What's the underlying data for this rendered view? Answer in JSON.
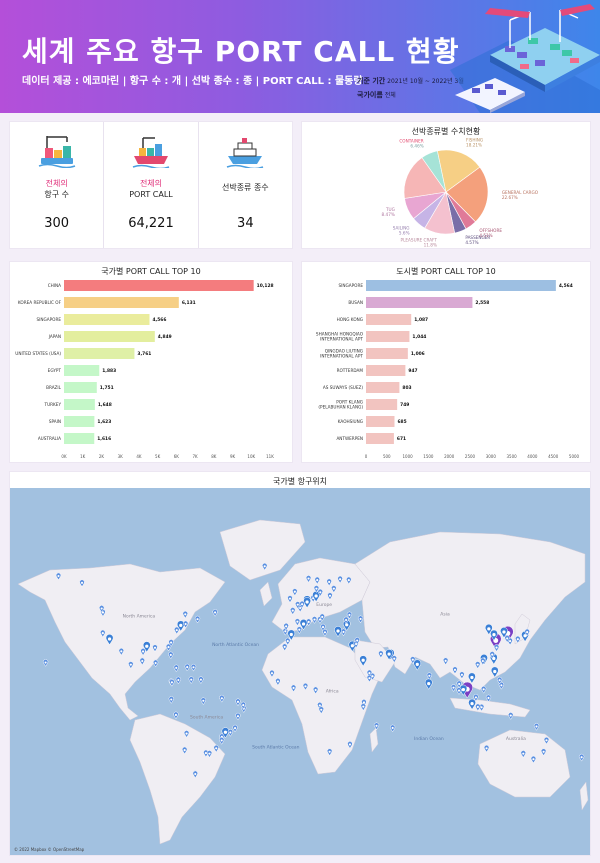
{
  "header": {
    "title": "세계 주요 항구 PORT CALL 현황",
    "subtitle": "데이터 제공 : 에코마린 | 항구 수 : 개 | 선박 종수 : 종 | PORT CALL : 물동량",
    "period_label": "기준 기간",
    "period_value": "2021년 10월 ~ 2022년 3월",
    "country_label": "국가이름",
    "country_value": "전체"
  },
  "kpis": [
    {
      "label_hl": "전체의",
      "label": "항구 수",
      "value": "300",
      "icon": "port-crane-icon"
    },
    {
      "label_hl": "전체의",
      "label": "PORT CALL",
      "value": "64,221",
      "icon": "cargo-ship-icon"
    },
    {
      "label_hl": "",
      "label": "선박종류 종수",
      "value": "34",
      "icon": "cruise-ship-icon"
    }
  ],
  "pie": {
    "title": "선박종류별 수치현황",
    "chart_data": {
      "type": "pie",
      "title": "선박종류별 수치현황",
      "slices": [
        {
          "name": "CONTAINER",
          "pct": "6.46%",
          "value": 6.46,
          "color": "#a6e3d7"
        },
        {
          "name": "FISHING",
          "pct": "18.21%",
          "value": 18.21,
          "color": "#f6cf85"
        },
        {
          "name": "GENERAL CARGO",
          "pct": "22.67%",
          "value": 22.67,
          "color": "#f4a07c"
        },
        {
          "name": "OFFSHORE",
          "pct": "4.51%",
          "value": 4.51,
          "color": "#e07a98"
        },
        {
          "name": "PASSENGER",
          "pct": "4.57%",
          "value": 4.57,
          "color": "#7a6ea8"
        },
        {
          "name": "PLEASURE CRAFT",
          "pct": "11.8%",
          "value": 11.8,
          "color": "#f4c1cf"
        },
        {
          "name": "SAILING",
          "pct": "5.6%",
          "value": 5.6,
          "color": "#c6b4e6"
        },
        {
          "name": "TUG",
          "pct": "8.47%",
          "value": 8.47,
          "color": "#e8a6d2"
        },
        {
          "name": "",
          "pct": "",
          "value": 17.71,
          "color": "#f6b6b6"
        }
      ]
    }
  },
  "country_chart": {
    "title": "국가별 PORT CALL TOP 10",
    "chart_data": {
      "type": "bar",
      "categories": [
        "CHINA",
        "KOREA REPUBLIC OF",
        "SINGAPORE",
        "JAPAN",
        "UNITED STATES (USA)",
        "EGYPT",
        "BRAZIL",
        "TURKEY",
        "SPAIN",
        "AUSTRALIA"
      ],
      "values": [
        10128,
        6131,
        4566,
        4849,
        3761,
        1883,
        1751,
        1648,
        1623,
        1616
      ],
      "value_labels": [
        "10,128",
        "6,131",
        "4,566",
        "4,849",
        "3,761",
        "1,883",
        "1,751",
        "1,648",
        "1,623",
        "1,616"
      ],
      "colors": [
        "#f47c7e",
        "#f6cf85",
        "#eaec9c",
        "#e3ee9e",
        "#dff0a6",
        "#c4f7c8",
        "#c4f7c8",
        "#c4f7c8",
        "#c4f7c8",
        "#c4f7c8"
      ],
      "xticks": [
        "0K",
        "1K",
        "2K",
        "3K",
        "4K",
        "5K",
        "6K",
        "7K",
        "8K",
        "9K",
        "10K",
        "11K"
      ],
      "xlim": [
        0,
        11000
      ]
    }
  },
  "city_chart": {
    "title": "도시별 PORT CALL TOP 10",
    "chart_data": {
      "type": "bar",
      "categories": [
        "SINGAPORE",
        "BUSAN",
        "HONG KONG",
        "SHANGHAI HONGQIAO INTERNATIONAL APT",
        "QINGDAO LIUTING INTERNATIONAL APT",
        "ROTTERDAM",
        "AS SUWAYS (SUEZ)",
        "PORT KLANG (PELABUHAN KLANG)",
        "KAOHSIUNG",
        "ANTWERPEN"
      ],
      "values": [
        4564,
        2558,
        1087,
        1044,
        1006,
        947,
        803,
        749,
        685,
        671
      ],
      "value_labels": [
        "4,564",
        "2,558",
        "1,087",
        "1,044",
        "1,006",
        "947",
        "803",
        "749",
        "685",
        "671"
      ],
      "colors": [
        "#9dbfe2",
        "#d9a9d3",
        "#f2c4c0",
        "#f2c4c0",
        "#f2c4c0",
        "#f2c4c0",
        "#f2c4c0",
        "#f2c4c0",
        "#f2c4c0",
        "#f2c4c0"
      ],
      "xticks": [
        "0",
        "500",
        "1000",
        "1500",
        "2000",
        "2500",
        "3000",
        "3500",
        "4000",
        "4500",
        "5000"
      ],
      "xlim": [
        0,
        5000
      ]
    }
  },
  "map": {
    "title": "국가별 항구위치",
    "labels": [
      {
        "text": "North America",
        "lon": -100,
        "lat": 47
      },
      {
        "text": "North Atlantic Ocean",
        "lon": -40,
        "lat": 33
      },
      {
        "text": "Europe",
        "lon": 15,
        "lat": 52
      },
      {
        "text": "Asia",
        "lon": 90,
        "lat": 48
      },
      {
        "text": "Africa",
        "lon": 20,
        "lat": 5
      },
      {
        "text": "South America",
        "lon": -58,
        "lat": -12
      },
      {
        "text": "South Atlantic Ocean",
        "lon": -15,
        "lat": -30
      },
      {
        "text": "Indian Ocean",
        "lon": 80,
        "lat": -25
      },
      {
        "text": "Australia",
        "lon": 134,
        "lat": -25
      }
    ],
    "attribution": "© 2022 Mapbox © OpenStreetMap",
    "ports": [
      [
        103.8,
        1.3,
        3
      ],
      [
        129,
        35.1,
        3
      ],
      [
        114.2,
        22.3,
        2
      ],
      [
        121.5,
        31.2,
        3
      ],
      [
        120.4,
        36,
        2
      ],
      [
        4.4,
        51.9,
        2
      ],
      [
        32.5,
        30,
        2
      ],
      [
        101.4,
        3,
        2
      ],
      [
        120.3,
        22.6,
        2
      ],
      [
        4.4,
        51.2,
        2
      ],
      [
        139.7,
        35.4,
        2
      ],
      [
        135.2,
        34.6,
        1
      ],
      [
        130.4,
        33.6,
        1
      ],
      [
        141,
        38.3,
        1
      ],
      [
        126.6,
        37.4,
        2
      ],
      [
        128.6,
        35,
        1
      ],
      [
        117.2,
        39,
        2
      ],
      [
        122,
        30,
        1
      ],
      [
        119.3,
        26,
        1
      ],
      [
        113.5,
        22.2,
        1
      ],
      [
        110.3,
        20,
        1
      ],
      [
        106.7,
        10.8,
        2
      ],
      [
        100.5,
        13.7,
        1
      ],
      [
        98.8,
        7.9,
        1
      ],
      [
        96.2,
        16.8,
        1
      ],
      [
        90.4,
        22.3,
        1
      ],
      [
        80.3,
        13.1,
        1
      ],
      [
        72.8,
        19,
        2
      ],
      [
        79.9,
        6.9,
        2
      ],
      [
        70,
        23,
        1
      ],
      [
        56.3,
        25.3,
        2
      ],
      [
        55.3,
        25.2,
        2
      ],
      [
        50.2,
        26.4,
        1
      ],
      [
        58.5,
        23.6,
        1
      ],
      [
        45,
        12.8,
        1
      ],
      [
        39.2,
        21.5,
        2
      ],
      [
        43.1,
        14.8,
        1
      ],
      [
        34.8,
        32,
        1
      ],
      [
        35.5,
        33.9,
        1
      ],
      [
        29,
        41,
        2
      ],
      [
        27,
        38.4,
        1
      ],
      [
        23.6,
        37.9,
        2
      ],
      [
        28.6,
        44.2,
        1
      ],
      [
        30.7,
        46.5,
        1
      ],
      [
        37.6,
        44.7,
        1
      ],
      [
        12.4,
        44.4,
        1
      ],
      [
        13.8,
        45.6,
        1
      ],
      [
        9,
        44.4,
        1
      ],
      [
        14.3,
        40.8,
        1
      ],
      [
        15.5,
        38.2,
        1
      ],
      [
        5.4,
        43.3,
        1
      ],
      [
        2.2,
        41.4,
        2
      ],
      [
        -0.4,
        39.5,
        1
      ],
      [
        -5.4,
        36.1,
        2
      ],
      [
        -9.1,
        38.7,
        1
      ],
      [
        -8.6,
        41.2,
        1
      ],
      [
        -1.6,
        43.4,
        1
      ],
      [
        -4.5,
        48.4,
        1
      ],
      [
        0.1,
        49.5,
        1
      ],
      [
        -1.4,
        50.9,
        1
      ],
      [
        1.3,
        51.1,
        1
      ],
      [
        -3.2,
        55.9,
        1
      ],
      [
        -6.2,
        53.3,
        1
      ],
      [
        8.2,
        53.5,
        1
      ],
      [
        10,
        53.6,
        2
      ],
      [
        10.2,
        57,
        1
      ],
      [
        12.6,
        55.7,
        1
      ],
      [
        18.1,
        59.3,
        1
      ],
      [
        24.9,
        60.2,
        1
      ],
      [
        30.3,
        59.9,
        1
      ],
      [
        18.6,
        54.4,
        1
      ],
      [
        21,
        57,
        1
      ],
      [
        5.3,
        60.4,
        1
      ],
      [
        10.7,
        59.9,
        1
      ],
      [
        -21.9,
        64.1,
        1
      ],
      [
        -9.5,
        30.4,
        1
      ],
      [
        -7.6,
        33.6,
        1
      ],
      [
        -17.4,
        14.7,
        1
      ],
      [
        -13.7,
        9.5,
        1
      ],
      [
        -4,
        5.3,
        1
      ],
      [
        3.4,
        6.4,
        1
      ],
      [
        9.7,
        4,
        1
      ],
      [
        12.3,
        -6,
        1
      ],
      [
        13.2,
        -8.8,
        1
      ],
      [
        18.4,
        -33.9,
        1
      ],
      [
        31,
        -29.9,
        1
      ],
      [
        39.7,
        -4.1,
        1
      ],
      [
        39.3,
        -6.8,
        1
      ],
      [
        43.1,
        11.6,
        1
      ],
      [
        47.5,
        -18.9,
        1
      ],
      [
        57.5,
        -20.2,
        1
      ],
      [
        115.8,
        -32,
        1
      ],
      [
        138.6,
        -34.9,
        1
      ],
      [
        144.9,
        -37.8,
        1
      ],
      [
        151.2,
        -33.9,
        1
      ],
      [
        153,
        -27.5,
        1
      ],
      [
        146.8,
        -19.3,
        1
      ],
      [
        130.8,
        -12.5,
        1
      ],
      [
        174.8,
        -36.8,
        1
      ],
      [
        106.8,
        -6.1,
        2
      ],
      [
        112.7,
        -7.2,
        1
      ],
      [
        110.4,
        -7,
        1
      ],
      [
        117,
        -1.2,
        1
      ],
      [
        125,
        7,
        1
      ],
      [
        120.9,
        14.6,
        2
      ],
      [
        123.9,
        10.3,
        1
      ],
      [
        114,
        4.4,
        1
      ],
      [
        109.2,
        -0.8,
        1
      ],
      [
        95.3,
        5.5,
        1
      ],
      [
        98.7,
        3.6,
        1
      ],
      [
        -74,
        40.7,
        2
      ],
      [
        -71,
        42.3,
        1
      ],
      [
        -76.5,
        39.3,
        1
      ],
      [
        -80,
        32.8,
        1
      ],
      [
        -81.6,
        30.3,
        1
      ],
      [
        -80.2,
        25.8,
        1
      ],
      [
        -90,
        29.9,
        1
      ],
      [
        -95.1,
        29.7,
        2
      ],
      [
        -97.4,
        27.8,
        1
      ],
      [
        -118.2,
        33.7,
        2
      ],
      [
        -122.4,
        37.8,
        1
      ],
      [
        -122.3,
        47.6,
        1
      ],
      [
        -123.1,
        49.3,
        1
      ],
      [
        -66.1,
        18.4,
        1
      ],
      [
        -79.9,
        9.3,
        1
      ],
      [
        -79.5,
        8.9,
        1
      ],
      [
        -75.5,
        10.4,
        1
      ],
      [
        -70,
        18.5,
        1
      ],
      [
        -76.8,
        18,
        1
      ],
      [
        -89.6,
        21,
        1
      ],
      [
        -97.9,
        22.2,
        1
      ],
      [
        -105,
        20,
        1
      ],
      [
        -110.9,
        27.9,
        1
      ],
      [
        -63.6,
        44.6,
        1
      ],
      [
        -71.2,
        46.8,
        1
      ],
      [
        -52.7,
        47.6,
        1
      ],
      [
        -135.3,
        59,
        1
      ],
      [
        -149.9,
        61.2,
        1
      ],
      [
        -157.9,
        21.3,
        1
      ],
      [
        -77,
        -12.1,
        1
      ],
      [
        -79.9,
        -2.2,
        1
      ],
      [
        -71.6,
        -33,
        1
      ],
      [
        -70.4,
        -23.6,
        1
      ],
      [
        -58.4,
        -34.6,
        1
      ],
      [
        -56.2,
        -34.9,
        1
      ],
      [
        -48.5,
        -25.5,
        1
      ],
      [
        -46.3,
        -23.9,
        2
      ],
      [
        -43.2,
        -22.9,
        1
      ],
      [
        -38.5,
        -12.9,
        1
      ],
      [
        -34.9,
        -8.1,
        1
      ],
      [
        -38.5,
        -3.7,
        1
      ],
      [
        -48.5,
        -1.4,
        1
      ],
      [
        -60,
        -3,
        1
      ],
      [
        -52,
        -32,
        1
      ],
      [
        -65,
        -45,
        1
      ],
      [
        -35.2,
        -5.8,
        1
      ],
      [
        -40.3,
        -20.3,
        1
      ],
      [
        -48.6,
        -27.6,
        1
      ],
      [
        -67.5,
        10.6,
        1
      ],
      [
        -61.5,
        10.6,
        1
      ]
    ]
  }
}
